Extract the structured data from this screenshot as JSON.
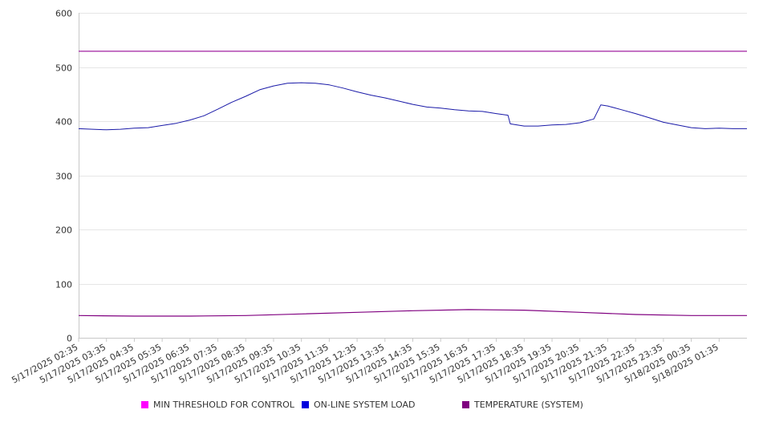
{
  "chart_data": {
    "type": "line",
    "title": "",
    "xlabel": "",
    "ylabel": "",
    "ylim": [
      0,
      600
    ],
    "y_ticks": [
      0,
      100,
      200,
      300,
      400,
      500,
      600
    ],
    "x_tick_labels": [
      "5/17/2025 02:35",
      "5/17/2025 03:35",
      "5/17/2025 04:35",
      "5/17/2025 05:35",
      "5/17/2025 06:35",
      "5/17/2025 07:35",
      "5/17/2025 08:35",
      "5/17/2025 09:35",
      "5/17/2025 10:35",
      "5/17/2025 11:35",
      "5/17/2025 12:35",
      "5/17/2025 13:35",
      "5/17/2025 14:35",
      "5/17/2025 15:35",
      "5/17/2025 16:35",
      "5/17/2025 17:35",
      "5/17/2025 18:35",
      "5/17/2025 19:35",
      "5/17/2025 20:35",
      "5/17/2025 21:35",
      "5/17/2025 22:35",
      "5/17/2025 23:35",
      "5/18/2025 00:35",
      "5/18/2025 01:35"
    ],
    "x_range": [
      "5/17/2025 02:35",
      "5/18/2025 02:35"
    ],
    "grid": true,
    "legend_position": "bottom",
    "series": [
      {
        "name": "MIN THRESHOLD FOR CONTROL",
        "color": "#ff00ff",
        "line_color": "#a020a0",
        "x": [
          "5/17/2025 02:35",
          "5/18/2025 02:35"
        ],
        "values": [
          529,
          529
        ]
      },
      {
        "name": "ON-LINE SYSTEM LOAD",
        "color": "#0000dd",
        "line_color": "#1a1aa8",
        "x": [
          "5/17/2025 02:35",
          "5/17/2025 03:05",
          "5/17/2025 03:35",
          "5/17/2025 04:05",
          "5/17/2025 04:35",
          "5/17/2025 05:05",
          "5/17/2025 05:35",
          "5/17/2025 06:05",
          "5/17/2025 06:35",
          "5/17/2025 07:05",
          "5/17/2025 07:35",
          "5/17/2025 08:05",
          "5/17/2025 08:35",
          "5/17/2025 09:05",
          "5/17/2025 09:35",
          "5/17/2025 10:05",
          "5/17/2025 10:35",
          "5/17/2025 11:05",
          "5/17/2025 11:35",
          "5/17/2025 12:05",
          "5/17/2025 12:35",
          "5/17/2025 13:05",
          "5/17/2025 13:35",
          "5/17/2025 14:05",
          "5/17/2025 14:35",
          "5/17/2025 15:05",
          "5/17/2025 15:35",
          "5/17/2025 16:05",
          "5/17/2025 16:35",
          "5/17/2025 17:05",
          "5/17/2025 17:35",
          "5/17/2025 18:00",
          "5/17/2025 18:05",
          "5/17/2025 18:35",
          "5/17/2025 19:05",
          "5/17/2025 19:35",
          "5/17/2025 20:05",
          "5/17/2025 20:35",
          "5/17/2025 21:05",
          "5/17/2025 21:20",
          "5/17/2025 21:35",
          "5/17/2025 22:05",
          "5/17/2025 22:35",
          "5/17/2025 23:05",
          "5/17/2025 23:35",
          "5/18/2025 00:05",
          "5/18/2025 00:35",
          "5/18/2025 01:05",
          "5/18/2025 01:35",
          "5/18/2025 02:05",
          "5/18/2025 02:35"
        ],
        "values": [
          386,
          385,
          384,
          385,
          387,
          388,
          392,
          396,
          402,
          410,
          422,
          435,
          446,
          458,
          465,
          470,
          471,
          470,
          467,
          461,
          454,
          448,
          443,
          437,
          431,
          426,
          424,
          421,
          419,
          418,
          414,
          411,
          395,
          391,
          391,
          393,
          394,
          397,
          404,
          430,
          428,
          421,
          414,
          406,
          398,
          393,
          388,
          386,
          387,
          386,
          386
        ]
      },
      {
        "name": "TEMPERATURE (SYSTEM)",
        "color": "#800080",
        "line_color": "#800080",
        "x": [
          "5/17/2025 02:35",
          "5/17/2025 04:35",
          "5/17/2025 06:35",
          "5/17/2025 08:35",
          "5/17/2025 10:35",
          "5/17/2025 12:35",
          "5/17/2025 14:35",
          "5/17/2025 16:35",
          "5/17/2025 18:35",
          "5/17/2025 20:35",
          "5/17/2025 22:35",
          "5/18/2025 00:35",
          "5/18/2025 02:35"
        ],
        "values": [
          41,
          40,
          40,
          41,
          44,
          47,
          50,
          52,
          51,
          47,
          43,
          41,
          41
        ]
      }
    ]
  }
}
